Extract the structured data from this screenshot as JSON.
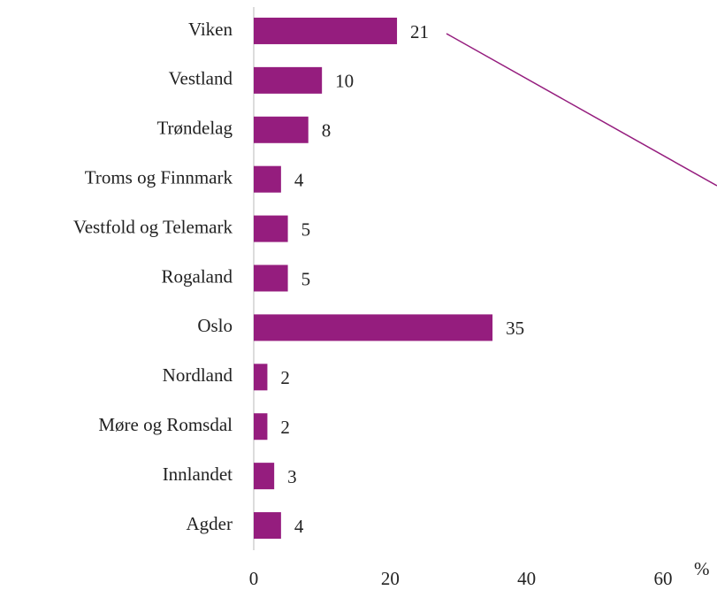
{
  "chart_data": {
    "type": "hbar",
    "categories": [
      "Viken",
      "Vestland",
      "Trøndelag",
      "Troms og Finnmark",
      "Vestfold og Telemark",
      "Rogaland",
      "Oslo",
      "Nordland",
      "Møre og Romsdal",
      "Innlandet",
      "Agder"
    ],
    "values": [
      21,
      10,
      8,
      4,
      5,
      5,
      35,
      2,
      2,
      3,
      4
    ],
    "color": "#951d7e",
    "xlim": [
      0,
      60
    ],
    "xticks": [
      0,
      20,
      40,
      60
    ],
    "x_label": "%",
    "grid": false
  }
}
